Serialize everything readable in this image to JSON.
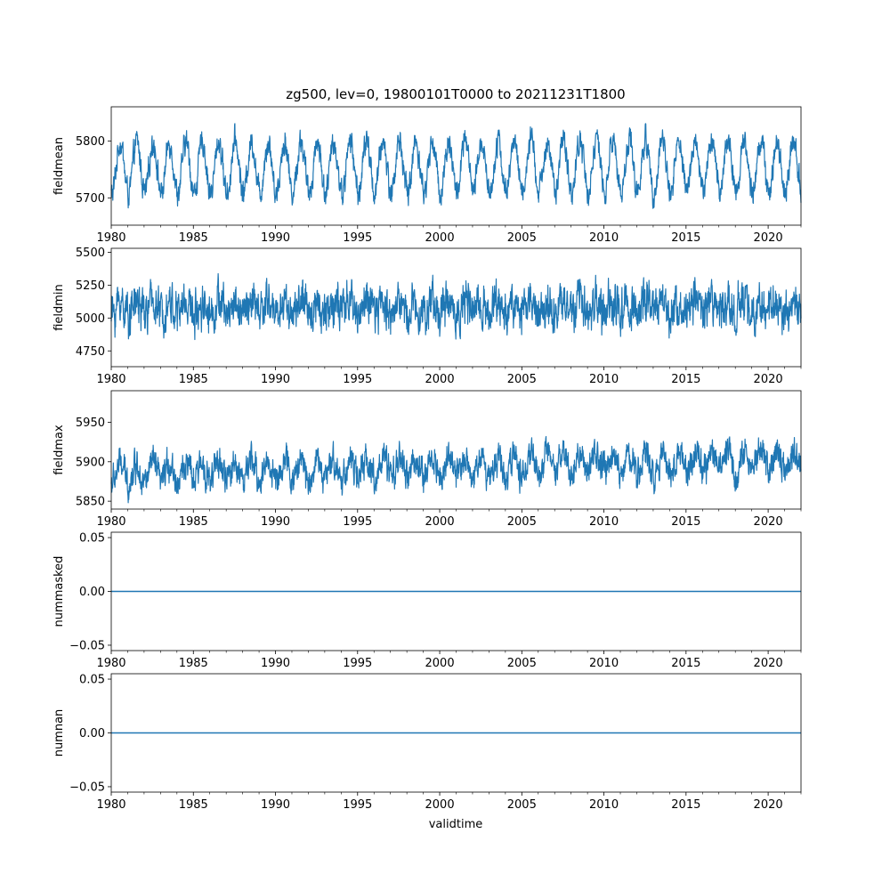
{
  "chart_data": {
    "type": "line",
    "title": "zg500, lev=0, 19800101T0000 to 20211231T1800",
    "xlabel": "validtime",
    "line_color": "#1f77b4",
    "x_range": [
      "1980-01-01",
      "2022-01-01"
    ],
    "x_tick_labels": [
      "1980",
      "1985",
      "1990",
      "1995",
      "2000",
      "2005",
      "2010",
      "2015",
      "2020"
    ],
    "grid": false,
    "panels": [
      {
        "ylabel": "fieldmean",
        "ylim": [
          5652,
          5860
        ],
        "y_ticks": [
          "5700",
          "5800"
        ],
        "series": {
          "kind": "seasonal",
          "mean": 5753,
          "seasonal_amp": 45,
          "noise": 15,
          "min_clip": 5660,
          "max_clip": 5855,
          "trend": 0.1
        }
      },
      {
        "ylabel": "fieldmin",
        "ylim": [
          4630,
          5530
        ],
        "y_ticks": [
          "4750",
          "5000",
          "5250",
          "5500"
        ],
        "series": {
          "kind": "seasonal",
          "mean": 5080,
          "seasonal_amp": 45,
          "noise": 105,
          "min_clip": 4680,
          "max_clip": 5500,
          "trend": 0
        }
      },
      {
        "ylabel": "fieldmax",
        "ylim": [
          5840,
          5990
        ],
        "y_ticks": [
          "5850",
          "5900",
          "5950"
        ],
        "series": {
          "kind": "seasonal",
          "mean": 5885,
          "seasonal_amp": 12,
          "noise": 13,
          "min_clip": 5846,
          "max_clip": 5985,
          "trend": 0.4
        }
      },
      {
        "ylabel": "nummasked",
        "ylim": [
          -0.055,
          0.055
        ],
        "y_ticks": [
          "−0.05",
          "0.00",
          "0.05"
        ],
        "series": {
          "kind": "constant",
          "value": 0
        }
      },
      {
        "ylabel": "numnan",
        "ylim": [
          -0.055,
          0.055
        ],
        "y_ticks": [
          "−0.05",
          "0.00",
          "0.05"
        ],
        "series": {
          "kind": "constant",
          "value": 0
        }
      }
    ]
  }
}
